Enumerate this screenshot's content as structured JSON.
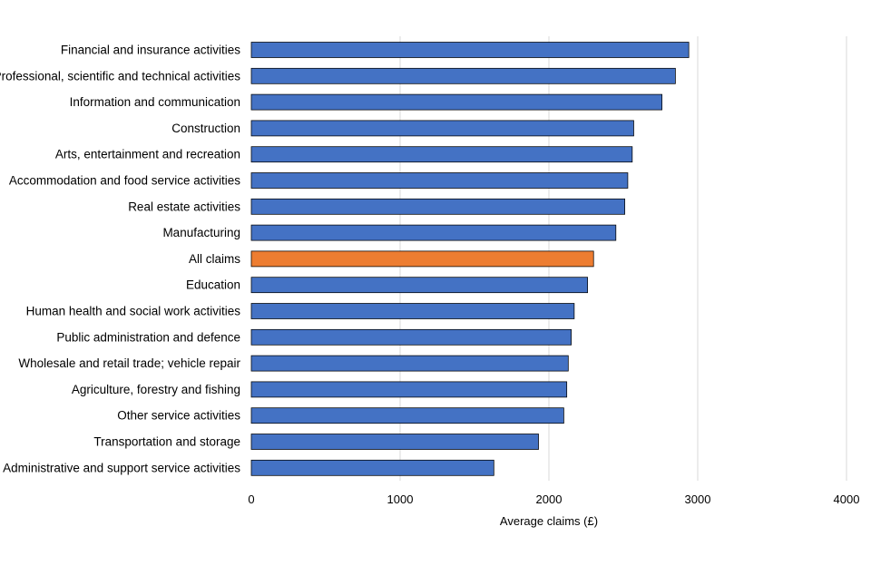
{
  "colors": {
    "bar": "#4472C4",
    "highlight": "#ED7D31",
    "bar_stroke": "#000000",
    "gridline": "#D9D9D9"
  },
  "chart_data": {
    "type": "bar",
    "orientation": "horizontal",
    "title": "",
    "xlabel": "Average claims (£)",
    "ylabel": "",
    "xlim": [
      0,
      4000
    ],
    "xticks": [
      0,
      1000,
      2000,
      3000,
      4000
    ],
    "grid": "vertical",
    "legend": "none",
    "highlight_category": "All claims",
    "categories": [
      "Financial and insurance activities",
      "Professional, scientific and technical activities",
      "Information and communication",
      "Construction",
      "Arts, entertainment and recreation",
      "Accommodation and food service activities",
      "Real estate activities",
      "Manufacturing",
      "All claims",
      "Education",
      "Human health and social work activities",
      "Public administration and defence",
      "Wholesale and retail trade; vehicle repair",
      "Agriculture, forestry and fishing",
      "Other service activities",
      "Transportation and storage",
      "Administrative and support service activities"
    ],
    "values": [
      2940,
      2850,
      2760,
      2570,
      2560,
      2530,
      2510,
      2450,
      2300,
      2260,
      2170,
      2150,
      2130,
      2120,
      2100,
      1930,
      1630
    ]
  }
}
